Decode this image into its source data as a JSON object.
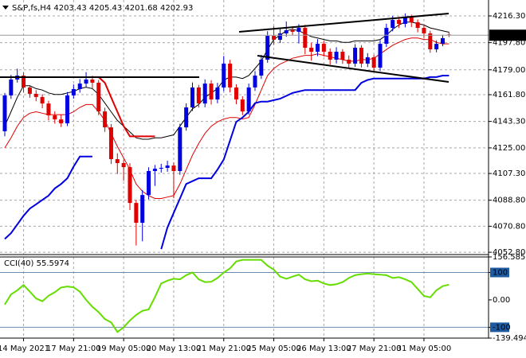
{
  "chart_data": [
    {
      "type": "candlestick",
      "symbol": "S&P,fs,H4",
      "up_color": "#0000e0",
      "down_color": "#e00000",
      "grid": true,
      "open": [
        4136.5,
        4161.3,
        4172.3,
        4175.0,
        4166.8,
        4162.4,
        4160.2,
        4155.7,
        4147.5,
        4144.7,
        4142.0,
        4161.3,
        4165.7,
        4169.5,
        4172.3,
        4170.1,
        4150.2,
        4139.2,
        4117.2,
        4114.5,
        4111.7,
        4086.9,
        4073.2,
        4092.4,
        4109.0,
        4110.6,
        4111.2,
        4112.8,
        4109.0,
        4139.2,
        4153.0,
        4166.8,
        4155.7,
        4169.5,
        4158.5,
        4166.8,
        4183.3,
        4166.8,
        4158.5,
        4150.2,
        4166.8,
        4175.0,
        4186.0,
        4202.5,
        4199.8,
        4204.2,
        4206.4,
        4205.3,
        4208.0,
        4194.3,
        4191.5,
        4197.0,
        4191.5,
        4186.0,
        4191.5,
        4186.0,
        4183.3,
        4194.3,
        4183.3,
        4187.7,
        4180.5,
        4197.0,
        4208.0,
        4213.5,
        4210.8,
        4215.2,
        4211.9,
        4208.0,
        4204.2,
        4193.2,
        4197.0,
        4203.43
      ],
      "high": [
        4163.0,
        4175.5,
        4179.8,
        4177.1,
        4168.4,
        4165.0,
        4162.1,
        4157.6,
        4150.3,
        4148.2,
        4163.6,
        4168.9,
        4172.6,
        4177.4,
        4174.9,
        4172.0,
        4152.8,
        4141.5,
        4121.3,
        4116.8,
        4114.4,
        4089.1,
        4095.8,
        4111.6,
        4113.2,
        4114.0,
        4116.1,
        4114.9,
        4141.7,
        4155.8,
        4170.3,
        4168.6,
        4172.4,
        4171.8,
        4170.0,
        4188.6,
        4185.9,
        4169.0,
        4160.7,
        4169.5,
        4178.1,
        4189.3,
        4205.7,
        4209.1,
        4207.3,
        4212.4,
        4209.0,
        4210.6,
        4210.1,
        4197.7,
        4200.2,
        4199.1,
        4193.8,
        4194.6,
        4193.3,
        4188.9,
        4196.8,
        4196.1,
        4190.5,
        4189.4,
        4199.6,
        4210.9,
        4216.2,
        4215.7,
        4218.0,
        4217.1,
        4213.8,
        4210.3,
        4206.0,
        4199.4,
        4203.2,
        4205.43
      ],
      "low": [
        4133.0,
        4158.9,
        4170.2,
        4163.5,
        4159.6,
        4157.3,
        4152.4,
        4144.1,
        4141.8,
        4139.5,
        4140.1,
        4159.0,
        4163.2,
        4167.1,
        4166.3,
        4147.6,
        4136.1,
        4113.9,
        4107.0,
        4102.3,
        4082.0,
        4057.5,
        4060.4,
        4089.3,
        4098.7,
        4107.9,
        4108.5,
        4090.2,
        4106.4,
        4136.9,
        4150.5,
        4152.9,
        4153.1,
        4155.0,
        4155.9,
        4164.2,
        4163.4,
        4155.2,
        4147.6,
        4148.0,
        4164.4,
        4172.7,
        4183.9,
        4196.4,
        4197.5,
        4201.9,
        4202.7,
        4197.2,
        4189.8,
        4185.3,
        4188.4,
        4188.2,
        4182.7,
        4183.4,
        4183.1,
        4180.0,
        4181.0,
        4180.6,
        4180.9,
        4177.8,
        4178.2,
        4194.8,
        4205.6,
        4207.9,
        4208.4,
        4208.6,
        4204.9,
        4201.0,
        4190.8,
        4191.1,
        4195.3,
        4201.68
      ],
      "close": [
        4161.3,
        4172.3,
        4175.0,
        4166.8,
        4162.4,
        4160.2,
        4155.7,
        4147.5,
        4144.7,
        4142.0,
        4161.3,
        4165.7,
        4169.5,
        4172.3,
        4170.1,
        4150.2,
        4139.2,
        4117.2,
        4114.5,
        4111.7,
        4086.9,
        4073.2,
        4092.4,
        4109.0,
        4110.6,
        4111.2,
        4112.8,
        4109.0,
        4139.2,
        4153.0,
        4166.8,
        4155.7,
        4169.5,
        4158.5,
        4166.8,
        4183.3,
        4166.8,
        4158.5,
        4150.2,
        4166.8,
        4175.0,
        4186.0,
        4202.5,
        4199.8,
        4204.2,
        4206.4,
        4205.3,
        4208.0,
        4194.3,
        4191.5,
        4197.0,
        4191.5,
        4186.0,
        4191.5,
        4186.0,
        4183.3,
        4194.3,
        4183.3,
        4187.7,
        4180.5,
        4197.0,
        4208.0,
        4213.5,
        4210.8,
        4215.2,
        4211.9,
        4208.0,
        4204.2,
        4193.2,
        4197.0,
        4200.9,
        4202.93
      ],
      "overlays": [
        {
          "color": "#000000",
          "width": 1,
          "values": [
            4140,
            4150,
            4160,
            4168,
            4168,
            4166,
            4165,
            4163,
            4162,
            4162,
            4163,
            4164,
            4166,
            4167,
            4166,
            4162,
            4156,
            4150,
            4144,
            4140,
            4136,
            4132,
            4131,
            4131,
            4132,
            4132,
            4133,
            4134,
            4140,
            4146,
            4152,
            4155,
            4160,
            4163,
            4166,
            4172,
            4174,
            4174,
            4173,
            4175,
            4180,
            4185,
            4193,
            4200,
            4203,
            4206,
            4207,
            4206,
            4204,
            4202,
            4201,
            4200,
            4199,
            4199,
            4198,
            4198,
            4199,
            4199,
            4199,
            4199,
            4200,
            4203,
            4207,
            4210,
            4212,
            4212,
            4211,
            4210,
            4208,
            4207,
            4206,
            4205
          ]
        },
        {
          "color": "#e00000",
          "width": 1,
          "values": [
            4125,
            4132,
            4140,
            4146,
            4149,
            4150,
            4149,
            4148,
            4148,
            4148,
            4148,
            4150,
            4153,
            4155,
            4155,
            4150,
            4144,
            4135,
            4126,
            4118,
            4110,
            4100,
            4095,
            4092,
            4090,
            4090,
            4091,
            4092,
            4100,
            4110,
            4120,
            4128,
            4135,
            4140,
            4143,
            4145,
            4146,
            4146,
            4145,
            4146,
            4155,
            4165,
            4175,
            4180,
            4183,
            4185,
            4187,
            4188,
            4189,
            4189,
            4190,
            4189,
            4188,
            4187,
            4186,
            4185,
            4185,
            4186,
            4186,
            4187,
            4190,
            4193,
            4196,
            4198,
            4200,
            4201,
            4201,
            4200,
            4200,
            4198,
            4197,
            4197
          ]
        },
        {
          "color": "#0000e0",
          "width": 2,
          "values": [
            4062,
            4066,
            4072,
            4078,
            4083,
            4086,
            4089,
            4092,
            4097,
            4100,
            4104,
            4112,
            4119,
            4119,
            4119,
            null,
            null,
            null,
            null,
            null,
            null,
            null,
            null,
            null,
            null,
            4055,
            4070,
            4080,
            4090,
            4100,
            4102,
            4104,
            4104,
            4104,
            4110,
            4117,
            4130,
            4143,
            4146,
            4150,
            4156,
            4157,
            4157,
            4158,
            4159,
            4161,
            4163,
            4164,
            4165,
            4165,
            4165,
            4165,
            4165,
            4165,
            4165,
            4165,
            4165,
            4170,
            4172,
            4173,
            4173,
            4173,
            4173,
            4173,
            4173,
            4173,
            4173,
            4173,
            4174,
            4174,
            4175,
            4175
          ]
        },
        {
          "color": "#e00000",
          "width": 2,
          "values": [
            null,
            null,
            null,
            null,
            null,
            null,
            null,
            null,
            null,
            null,
            null,
            null,
            null,
            null,
            4174,
            4174,
            4170,
            4160,
            4150,
            4140,
            4133,
            4133,
            4133,
            4133,
            4133,
            null,
            null,
            null,
            null,
            null,
            null,
            null,
            null,
            null,
            null,
            null,
            null,
            null,
            null,
            null,
            null,
            null,
            null,
            null,
            null,
            null,
            null,
            null,
            null,
            null,
            null,
            null,
            null,
            null,
            null,
            null,
            null,
            null,
            null,
            null,
            null,
            null,
            null,
            null,
            null,
            null,
            null,
            null,
            null,
            null,
            null,
            null
          ]
        }
      ],
      "ylim": [
        4051.2,
        4227.3
      ],
      "yticks": [
        {
          "value": 4216.3,
          "label": "4216.30"
        },
        {
          "value": 4197.8,
          "label": "4197.80"
        },
        {
          "value": 4179,
          "label": "4179.00"
        },
        {
          "value": 4161.8,
          "label": "4161.80"
        },
        {
          "value": 4143.3,
          "label": "4143.30"
        },
        {
          "value": 4125,
          "label": "4125.00"
        },
        {
          "value": 4107.3,
          "label": "4107.30"
        },
        {
          "value": 4088.8,
          "label": "4088.80"
        },
        {
          "value": 4070.8,
          "label": "4070.80"
        },
        {
          "value": 4052.8,
          "label": "4052.80"
        }
      ],
      "xticks": [
        {
          "value": 3,
          "label": "14 May 2021"
        },
        {
          "value": 11,
          "label": "17 May 21:00"
        },
        {
          "value": 19,
          "label": "19 May 05:00"
        },
        {
          "value": 27,
          "label": "20 May 13:00"
        },
        {
          "value": 35,
          "label": "21 May 21:00"
        },
        {
          "value": 43,
          "label": "25 May 05:00"
        },
        {
          "value": 51,
          "label": "26 May 13:00"
        },
        {
          "value": 59,
          "label": "27 May 21:00"
        },
        {
          "value": 67,
          "label": "31 May 05:00"
        }
      ]
    },
    {
      "type": "line",
      "title": "CCI(40)",
      "color": "#66dd00",
      "values": [
        -17,
        20,
        35,
        54,
        30,
        5,
        -5,
        15,
        28,
        45,
        49,
        46,
        30,
        0,
        -25,
        -45,
        -70,
        -82,
        -117,
        -100,
        -75,
        -55,
        -40,
        -35,
        10,
        60,
        70,
        77,
        75,
        90,
        100,
        75,
        65,
        66,
        80,
        100,
        115,
        140,
        146,
        146,
        146,
        146,
        125,
        110,
        85,
        77,
        85,
        92,
        75,
        68,
        70,
        60,
        54,
        57,
        65,
        80,
        90,
        94,
        96,
        94,
        92,
        90,
        80,
        83,
        75,
        65,
        40,
        15,
        9,
        35,
        50,
        55.5974
      ],
      "ylim": [
        -139.4945,
        156.5851
      ],
      "yticks": [
        156.5851,
        100,
        {
          "value": 0,
          "label": "0.00"
        },
        -100,
        -139.4945
      ],
      "levels": [
        100,
        -100
      ]
    }
  ]
}
